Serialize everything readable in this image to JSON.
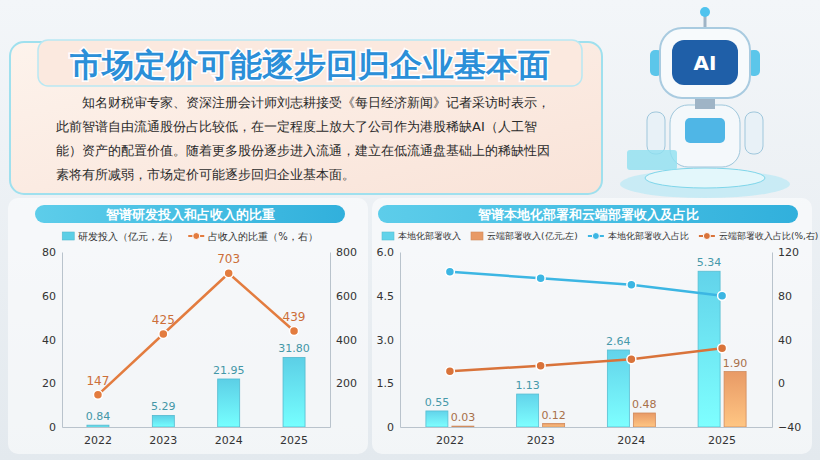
{
  "header": {
    "title": "市场定价可能逐步回归企业基本面",
    "text": "知名财税审专家、资深注册会计师刘志耕接受《每日经济新闻》记者采访时表示，此前智谱自由流通股份占比较低，在一定程度上放大了公司作为港股稀缺AI（人工智能）资产的配置价值。随着更多股份逐步进入流通，建立在低流通盘基础上的稀缺性因素将有所减弱，市场定价可能逐步回归企业基本面。",
    "badge": "AI"
  },
  "chart_data": [
    {
      "type": "bar",
      "title": "智谱研发投入和占收入的比重",
      "categories": [
        "2022",
        "2023",
        "2024",
        "2025"
      ],
      "series": [
        {
          "name": "研发投入（亿元，左）",
          "type": "bar",
          "color": "#5ccfe6",
          "values": [
            0.84,
            5.29,
            21.95,
            31.8
          ],
          "value_labels": [
            "0.84",
            "5.29",
            "21.95",
            "31.80"
          ],
          "data_labels": true
        },
        {
          "name": "占收入的比重（%，右）",
          "type": "line",
          "axis": "y2",
          "color": "#e37c3f",
          "marker": "circle",
          "values": [
            147,
            425,
            703,
            439
          ],
          "data_labels": true
        }
      ],
      "ylim": [
        0,
        80
      ],
      "yticks": [
        0,
        20,
        40,
        60,
        80
      ],
      "y2lim": [
        0,
        800
      ],
      "y2ticks": [
        200,
        400,
        600,
        800
      ],
      "grid": false,
      "legend": "top"
    },
    {
      "type": "bar",
      "title": "智谱本地化部署和云端部署收入及占比",
      "categories": [
        "2022",
        "2023",
        "2024",
        "2025"
      ],
      "series": [
        {
          "name": "本地化部署收入",
          "type": "bar",
          "color": "#62d3ea",
          "values": [
            0.55,
            1.13,
            2.64,
            5.34
          ],
          "value_labels": [
            "0.55",
            "1.13",
            "2.64",
            "5.34"
          ],
          "data_labels": true
        },
        {
          "name": "云端部署收入(亿元,左)",
          "type": "bar",
          "color": "#e89a66",
          "values": [
            0.03,
            0.12,
            0.48,
            1.9
          ],
          "value_labels": [
            "0.03",
            "0.12",
            "0.48",
            "1.90"
          ],
          "data_labels": true
        },
        {
          "name": "本地化部署收入占比",
          "type": "line",
          "axis": "y2",
          "color": "#3cb6e3",
          "marker": "circle",
          "values": [
            102,
            96,
            90,
            80
          ]
        },
        {
          "name": "云端部署收入占比(%,右)",
          "type": "line",
          "axis": "y2",
          "color": "#d9733a",
          "marker": "circle",
          "values": [
            11,
            16,
            22,
            32
          ]
        }
      ],
      "ylim": [
        0,
        6
      ],
      "yticks": [
        0,
        1.5,
        {
          "value": 3,
          "label": "3.0"
        },
        4.5,
        {
          "value": 6,
          "label": "6.0"
        }
      ],
      "y2lim": [
        -40,
        120
      ],
      "y2ticks": [
        {
          "value": -40,
          "label": "−40"
        },
        0,
        40,
        80,
        120
      ],
      "grid": false,
      "legend": "top"
    }
  ]
}
